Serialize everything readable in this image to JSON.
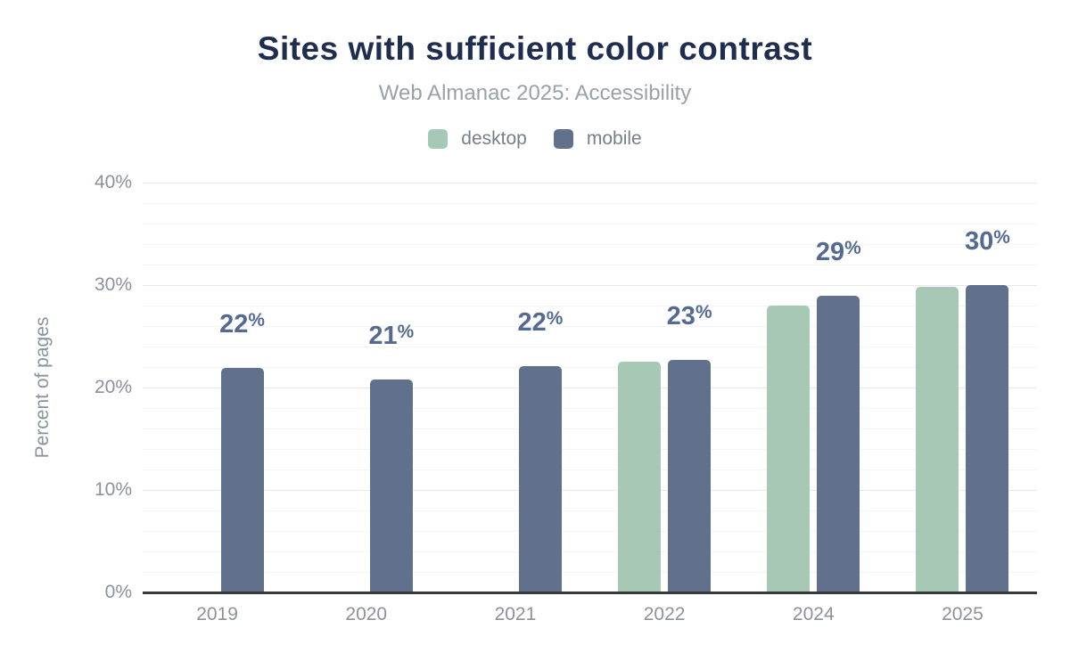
{
  "header": {
    "title": "Sites with sufficient color contrast",
    "subtitle": "Web Almanac 2025: Accessibility"
  },
  "chart_data": {
    "type": "bar",
    "title": "Sites with sufficient color contrast",
    "subtitle": "Web Almanac 2025: Accessibility",
    "categories": [
      "2019",
      "2020",
      "2021",
      "2022",
      "2024",
      "2025"
    ],
    "series": [
      {
        "name": "desktop",
        "color": "#a7c8b4",
        "values": [
          null,
          null,
          null,
          22.5,
          28,
          29.8
        ]
      },
      {
        "name": "mobile",
        "color": "#61718b",
        "values": [
          21.9,
          20.8,
          22.1,
          22.7,
          29,
          30
        ]
      }
    ],
    "annotations": [
      "22%",
      "21%",
      "22%",
      "23%",
      "29%",
      "30%"
    ],
    "annotation_color": "#556a90",
    "xlabel": "",
    "ylabel": "Percent of pages",
    "ylim": [
      0,
      40
    ],
    "yticks": [
      "0%",
      "10%",
      "20%",
      "30%",
      "40%"
    ],
    "ytick_values": [
      0,
      10,
      20,
      30,
      40
    ],
    "minor_grid_step": 2,
    "grid": "on",
    "legend_position": "top",
    "background": "#ffffff",
    "title_color": "#1f2d4f",
    "subtitle_color": "#9aa1a9",
    "tick_label_color": "#8b929c",
    "axis_line_color": "#37393e"
  }
}
